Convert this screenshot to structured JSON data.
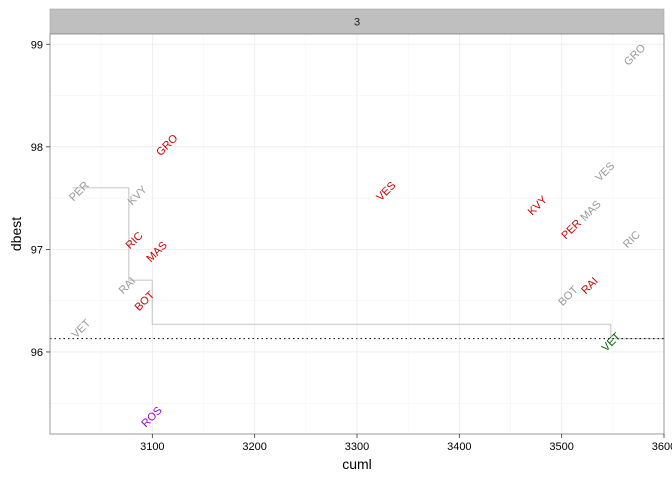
{
  "chart_data": {
    "type": "scatter",
    "facet": "3",
    "xlabel": "cuml",
    "ylabel": "dbest",
    "xlim": [
      3000,
      3600
    ],
    "ylim": [
      95.2,
      99.1
    ],
    "x_ticks": [
      3100,
      3200,
      3300,
      3400,
      3500,
      3600
    ],
    "x_tick_labels": [
      "3100",
      "3200",
      "3300",
      "3400",
      "3500",
      "3600"
    ],
    "y_ticks": [
      96,
      97,
      98,
      99
    ],
    "y_tick_labels": [
      "96",
      "97",
      "98",
      "99"
    ],
    "grid": true,
    "reference_line": {
      "y": 96.13,
      "style": "dotted",
      "color": "#000000"
    },
    "step_line": {
      "color": "#cccccc",
      "points": [
        [
          3022,
          97.6
        ],
        [
          3077,
          97.6
        ],
        [
          3077,
          96.7
        ],
        [
          3100,
          96.7
        ],
        [
          3100,
          96.27
        ],
        [
          3548,
          96.27
        ],
        [
          3548,
          96.13
        ],
        [
          3600,
          96.13
        ]
      ]
    },
    "points": [
      {
        "label": "GRO",
        "x": 3571,
        "y": 98.9,
        "color": "#999999"
      },
      {
        "label": "GRO",
        "x": 3114,
        "y": 98.02,
        "color": "#cc0000"
      },
      {
        "label": "PER",
        "x": 3028,
        "y": 97.57,
        "color": "#999999"
      },
      {
        "label": "KVY",
        "x": 3085,
        "y": 97.53,
        "color": "#999999"
      },
      {
        "label": "VES",
        "x": 3328,
        "y": 97.57,
        "color": "#cc0000"
      },
      {
        "label": "VES",
        "x": 3542,
        "y": 97.76,
        "color": "#999999"
      },
      {
        "label": "KVY",
        "x": 3476,
        "y": 97.43,
        "color": "#cc0000"
      },
      {
        "label": "PER",
        "x": 3509,
        "y": 97.2,
        "color": "#cc0000"
      },
      {
        "label": "MAS",
        "x": 3528,
        "y": 97.38,
        "color": "#999999"
      },
      {
        "label": "RIC",
        "x": 3568,
        "y": 97.1,
        "color": "#999999"
      },
      {
        "label": "RIC",
        "x": 3082,
        "y": 97.09,
        "color": "#cc0000"
      },
      {
        "label": "MAS",
        "x": 3104,
        "y": 96.98,
        "color": "#cc0000"
      },
      {
        "label": "RAI",
        "x": 3075,
        "y": 96.65,
        "color": "#999999"
      },
      {
        "label": "BOT",
        "x": 3092,
        "y": 96.5,
        "color": "#cc0000"
      },
      {
        "label": "BOT",
        "x": 3506,
        "y": 96.55,
        "color": "#999999"
      },
      {
        "label": "RAI",
        "x": 3527,
        "y": 96.65,
        "color": "#cc0000"
      },
      {
        "label": "VET",
        "x": 3030,
        "y": 96.23,
        "color": "#999999"
      },
      {
        "label": "VET",
        "x": 3548,
        "y": 96.1,
        "color": "#006600"
      },
      {
        "label": "ROS",
        "x": 3099,
        "y": 95.37,
        "color": "#9900cc"
      }
    ]
  }
}
